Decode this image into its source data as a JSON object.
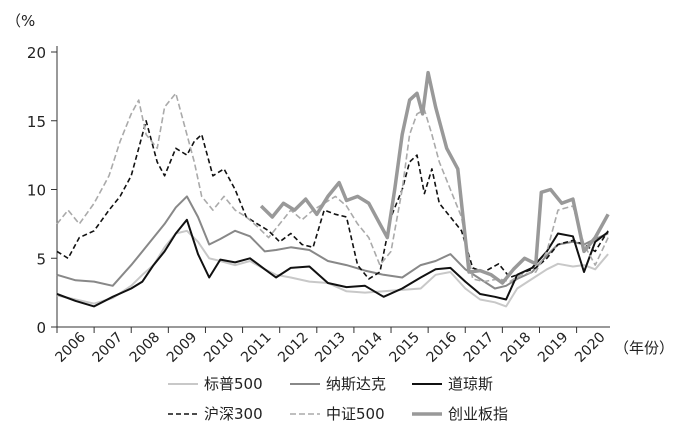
{
  "chart_data": {
    "type": "line",
    "ylabel": "（%",
    "xlabel": "（年份）",
    "ylim": [
      0,
      20
    ],
    "xlim": [
      2006,
      2020.9
    ],
    "yticks": [
      0,
      5,
      10,
      15,
      20
    ],
    "xticks": [
      2006,
      2007,
      2008,
      2009,
      2010,
      2011,
      2012,
      2013,
      2014,
      2015,
      2016,
      2017,
      2018,
      2019,
      2020
    ],
    "grid": false,
    "legend_position": "bottom",
    "series": [
      {
        "name": "标普500",
        "color": "#c8c8c8",
        "dash": "solid",
        "width": 2,
        "x": [
          2006,
          2006.5,
          2007,
          2007.5,
          2008,
          2008.3,
          2008.6,
          2008.9,
          2009.2,
          2009.5,
          2009.8,
          2010.1,
          2010.4,
          2010.8,
          2011.2,
          2011.6,
          2011.9,
          2012.3,
          2012.8,
          2013.3,
          2013.8,
          2014.3,
          2014.8,
          2015.3,
          2015.8,
          2016.2,
          2016.6,
          2017,
          2017.4,
          2017.8,
          2018.1,
          2018.4,
          2018.8,
          2019.2,
          2019.5,
          2019.9,
          2020.2,
          2020.5,
          2020.85
        ],
        "y": [
          2.3,
          2.0,
          1.7,
          2.1,
          3.0,
          3.8,
          4.5,
          5.8,
          6.8,
          7.0,
          6.2,
          5.0,
          4.8,
          4.5,
          4.8,
          4.2,
          3.8,
          3.6,
          3.3,
          3.2,
          2.6,
          2.5,
          2.6,
          2.7,
          2.8,
          3.8,
          4.0,
          2.8,
          2.0,
          1.8,
          1.5,
          2.8,
          3.5,
          4.2,
          4.6,
          4.4,
          4.5,
          4.2,
          5.3
        ]
      },
      {
        "name": "纳斯达克",
        "color": "#888888",
        "dash": "solid",
        "width": 2,
        "x": [
          2006,
          2006.5,
          2007,
          2007.5,
          2008,
          2008.3,
          2008.6,
          2008.9,
          2009.2,
          2009.5,
          2009.8,
          2010.1,
          2010.4,
          2010.8,
          2011.2,
          2011.6,
          2011.9,
          2012.3,
          2012.8,
          2013.3,
          2013.8,
          2014.3,
          2014.8,
          2015.3,
          2015.8,
          2016.2,
          2016.6,
          2017,
          2017.4,
          2017.8,
          2018.1,
          2018.4,
          2018.8,
          2019.2,
          2019.5,
          2019.9,
          2020.2,
          2020.5,
          2020.85
        ],
        "y": [
          3.8,
          3.4,
          3.3,
          3.0,
          4.5,
          5.5,
          6.5,
          7.5,
          8.7,
          9.5,
          8.0,
          6.0,
          6.4,
          7.0,
          6.6,
          5.5,
          5.6,
          5.8,
          5.6,
          4.8,
          4.5,
          4.1,
          3.8,
          3.6,
          4.5,
          4.8,
          5.3,
          4.2,
          3.5,
          2.8,
          3.0,
          3.5,
          4.0,
          5.2,
          6.0,
          6.2,
          6.0,
          6.4,
          6.8
        ]
      },
      {
        "name": "道琼斯",
        "color": "#111111",
        "dash": "solid",
        "width": 2,
        "x": [
          2006,
          2006.5,
          2007,
          2007.5,
          2008,
          2008.3,
          2008.6,
          2008.9,
          2009.2,
          2009.5,
          2009.8,
          2010.1,
          2010.4,
          2010.8,
          2011.2,
          2011.6,
          2011.9,
          2012.3,
          2012.8,
          2013.3,
          2013.8,
          2014.3,
          2014.8,
          2015.3,
          2015.8,
          2016.2,
          2016.6,
          2017,
          2017.4,
          2017.8,
          2018.1,
          2018.4,
          2018.8,
          2019.2,
          2019.5,
          2019.9,
          2020.2,
          2020.5,
          2020.85
        ],
        "y": [
          2.4,
          1.9,
          1.5,
          2.2,
          2.8,
          3.3,
          4.5,
          5.5,
          6.8,
          7.8,
          5.3,
          3.6,
          4.9,
          4.7,
          5.0,
          4.2,
          3.6,
          4.3,
          4.4,
          3.2,
          2.9,
          3.0,
          2.2,
          2.8,
          3.6,
          4.2,
          4.3,
          3.3,
          2.4,
          2.2,
          2.0,
          3.8,
          4.3,
          5.5,
          6.8,
          6.6,
          4.0,
          6.2,
          6.9
        ]
      },
      {
        "name": "沪深300",
        "color": "#111111",
        "dash": "5,3",
        "width": 1.6,
        "x": [
          2006,
          2006.3,
          2006.6,
          2007,
          2007.4,
          2007.7,
          2008,
          2008.2,
          2008.4,
          2008.7,
          2008.9,
          2009.2,
          2009.5,
          2009.7,
          2009.9,
          2010.2,
          2010.5,
          2010.8,
          2011.1,
          2011.4,
          2011.7,
          2012,
          2012.3,
          2012.6,
          2012.9,
          2013.2,
          2013.5,
          2013.8,
          2014.1,
          2014.4,
          2014.7,
          2015,
          2015.3,
          2015.5,
          2015.7,
          2015.9,
          2016.1,
          2016.3,
          2016.6,
          2016.9,
          2017.2,
          2017.5,
          2017.9,
          2018.2,
          2018.5,
          2018.9,
          2019.2,
          2019.5,
          2019.9,
          2020.2,
          2020.5,
          2020.85
        ],
        "y": [
          5.5,
          5.0,
          6.5,
          7.0,
          8.5,
          9.5,
          11.0,
          13.0,
          15.0,
          12.0,
          11.0,
          13.0,
          12.5,
          13.5,
          14.0,
          11.0,
          11.5,
          10.0,
          8.0,
          7.5,
          7.0,
          6.2,
          6.8,
          6.0,
          5.8,
          8.5,
          8.2,
          8.0,
          4.5,
          3.5,
          4.0,
          8.0,
          10.0,
          12.0,
          12.5,
          9.7,
          11.5,
          9.0,
          8.0,
          7.0,
          4.3,
          4.0,
          4.6,
          3.6,
          3.9,
          4.3,
          5.0,
          6.0,
          6.3,
          6.0,
          5.5,
          7.0
        ]
      },
      {
        "name": "中证500",
        "color": "#aaaaaa",
        "dash": "6,3",
        "width": 1.6,
        "x": [
          2006,
          2006.3,
          2006.6,
          2007,
          2007.4,
          2007.7,
          2008,
          2008.2,
          2008.4,
          2008.7,
          2008.9,
          2009.2,
          2009.5,
          2009.7,
          2009.9,
          2010.2,
          2010.5,
          2010.8,
          2011.1,
          2011.4,
          2011.7,
          2012,
          2012.3,
          2012.6,
          2012.9,
          2013.2,
          2013.5,
          2013.8,
          2014.1,
          2014.4,
          2014.7,
          2015,
          2015.3,
          2015.5,
          2015.7,
          2015.9,
          2016.1,
          2016.3,
          2016.6,
          2016.9,
          2017.2,
          2017.5,
          2017.9,
          2018.2,
          2018.5,
          2018.9,
          2019.2,
          2019.5,
          2019.9,
          2020.2,
          2020.5,
          2020.85
        ],
        "y": [
          7.5,
          8.5,
          7.5,
          9.0,
          11.0,
          13.5,
          15.5,
          16.5,
          14.0,
          13.0,
          16.0,
          17.0,
          14.0,
          12.0,
          9.5,
          8.5,
          9.5,
          8.5,
          8.0,
          7.3,
          6.5,
          7.5,
          8.5,
          7.8,
          8.5,
          9.0,
          9.5,
          8.8,
          7.5,
          6.5,
          4.5,
          5.5,
          10.0,
          14.0,
          15.5,
          15.8,
          14.0,
          12.0,
          10.0,
          8.0,
          3.5,
          3.3,
          3.5,
          3.3,
          3.8,
          4.0,
          5.5,
          8.5,
          8.8,
          6.0,
          4.5,
          6.5
        ]
      },
      {
        "name": "创业板指",
        "color": "#999999",
        "dash": "solid",
        "width": 3.5,
        "x": [
          2011.5,
          2011.8,
          2012.1,
          2012.4,
          2012.7,
          2013,
          2013.3,
          2013.6,
          2013.8,
          2014.1,
          2014.4,
          2014.7,
          2014.9,
          2015.1,
          2015.3,
          2015.5,
          2015.7,
          2015.85,
          2016,
          2016.2,
          2016.5,
          2016.8,
          2017.1,
          2017.4,
          2017.7,
          2018,
          2018.3,
          2018.6,
          2018.9,
          2019.05,
          2019.3,
          2019.6,
          2019.9,
          2020.2,
          2020.5,
          2020.85
        ],
        "y": [
          8.8,
          8.0,
          9.0,
          8.5,
          9.3,
          8.2,
          9.5,
          10.5,
          9.2,
          9.5,
          9.0,
          7.5,
          6.5,
          10.0,
          14.0,
          16.5,
          17.0,
          15.5,
          18.5,
          16.0,
          13.0,
          11.5,
          4.0,
          4.1,
          3.8,
          3.2,
          4.2,
          5.0,
          4.6,
          9.8,
          10.0,
          9.0,
          9.3,
          5.5,
          6.5,
          8.2
        ]
      }
    ]
  }
}
